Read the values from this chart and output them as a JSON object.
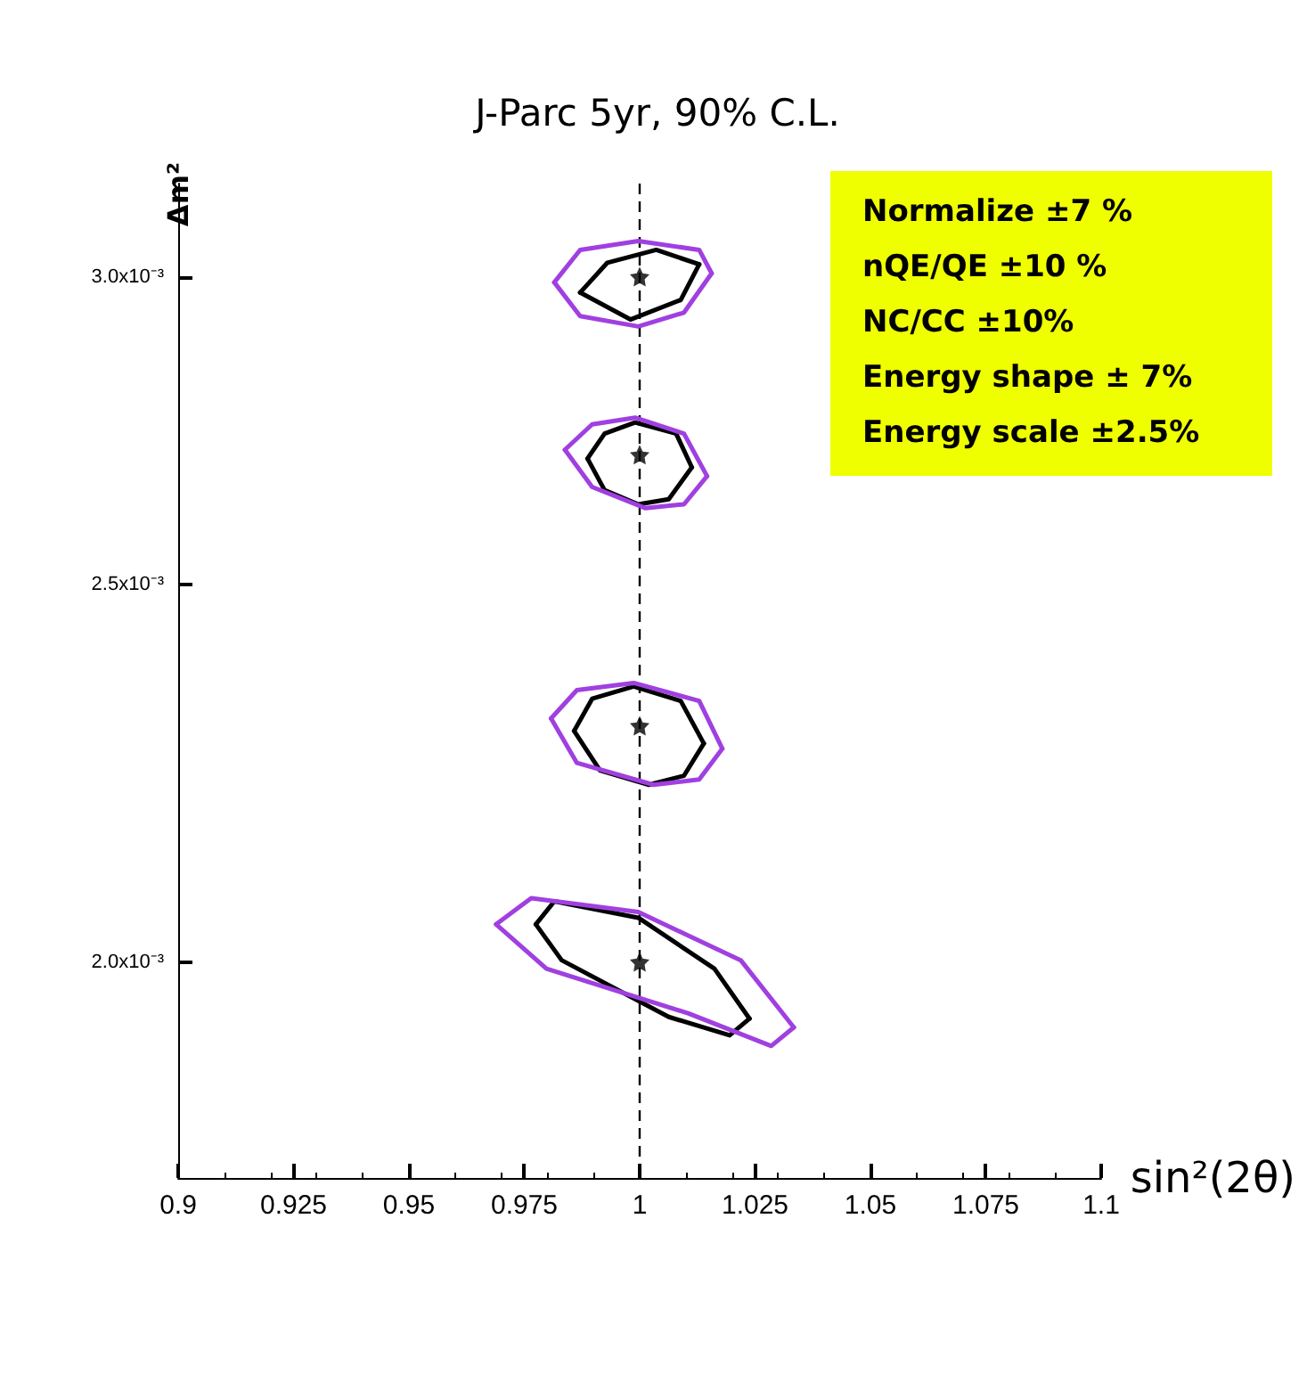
{
  "chart_data": {
    "type": "line",
    "title": "J-Parc 5yr, 90% C.L.",
    "xlabel": "sin²(2θ)",
    "ylabel": "Δm²",
    "log": "y",
    "grid": false,
    "marker": "none",
    "line_style": "solid",
    "xlim": [
      0.9,
      1.1
    ],
    "xticks": [
      0.9,
      0.925,
      0.95,
      0.975,
      1,
      1.025,
      1.05,
      1.075,
      1.1
    ],
    "ylim": [
      0.00176,
      0.00317
    ],
    "yticks": [
      {
        "value": 0.002,
        "label": "2.0x10⁻³"
      },
      {
        "value": 0.0025,
        "label": "2.5x10⁻³"
      },
      {
        "value": 0.003,
        "label": "3.0x10⁻³"
      }
    ],
    "ref_lines": [
      {
        "axis": "x",
        "value": 1,
        "color": "#000000",
        "line_style": "dashed"
      }
    ],
    "annotations": [
      "Normalize ±7 %",
      "nQE/QE ±10 %",
      "NC/CC ±10%",
      "Energy shape ± 7%",
      "Energy scale ±2.5%"
    ],
    "series": [
      {
        "color": "#000000",
        "x": [
          0.9871,
          0.993,
          1.0036,
          1.0129
        ],
        "values": [
          0.002972,
          0.003025,
          0.003048,
          0.003022
        ]
      },
      {
        "color": "#000000",
        "x": [
          0.9871,
          0.998,
          1.0089,
          1.0129
        ],
        "values": [
          0.002972,
          0.002925,
          0.002959,
          0.003022
        ]
      },
      {
        "color": "#a040e0",
        "x": [
          0.9815,
          0.9871,
          0.9997,
          1.0129,
          1.0156
        ],
        "values": [
          0.00299,
          0.003048,
          0.003064,
          0.003048,
          0.003006
        ]
      },
      {
        "color": "#a040e0",
        "x": [
          0.9815,
          0.9871,
          0.9997,
          1.0096,
          1.0156
        ],
        "values": [
          0.00299,
          0.002931,
          0.002913,
          0.002937,
          0.003006
        ]
      },
      {
        "color": "#000000",
        "x": [
          0.9887,
          0.9924,
          0.999,
          1.0079,
          1.0113
        ],
        "values": [
          0.002694,
          0.002734,
          0.002752,
          0.002734,
          0.00268
        ]
      },
      {
        "color": "#000000",
        "x": [
          0.9887,
          0.9924,
          0.9997,
          1.0063,
          1.0113
        ],
        "values": [
          0.002694,
          0.002644,
          0.002622,
          0.00263,
          0.00268
        ]
      },
      {
        "color": "#a040e0",
        "x": [
          0.9838,
          0.9897,
          0.999,
          1.0096,
          1.0146
        ],
        "values": [
          0.002708,
          0.002749,
          0.00276,
          0.002734,
          0.002666
        ]
      },
      {
        "color": "#a040e0",
        "x": [
          0.9838,
          0.9897,
          1.0013,
          1.0096,
          1.0146
        ],
        "values": [
          0.002708,
          0.002649,
          0.002616,
          0.002622,
          0.002666
        ]
      },
      {
        "color": "#000000",
        "x": [
          0.9858,
          0.9897,
          0.9987,
          1.0089,
          1.0139
        ],
        "values": [
          0.002293,
          0.002337,
          0.002354,
          0.002334,
          0.002276
        ]
      },
      {
        "color": "#000000",
        "x": [
          0.9858,
          0.9914,
          1.002,
          1.0096,
          1.0139
        ],
        "values": [
          0.002293,
          0.00224,
          0.002221,
          0.002233,
          0.002276
        ]
      },
      {
        "color": "#a040e0",
        "x": [
          0.9808,
          0.9864,
          0.9987,
          1.0129,
          1.0179
        ],
        "values": [
          0.00231,
          0.002349,
          0.002359,
          0.002334,
          0.002269
        ]
      },
      {
        "color": "#a040e0",
        "x": [
          0.9808,
          0.9864,
          1.003,
          1.0129,
          1.0179
        ],
        "values": [
          0.00231,
          0.00225,
          0.002221,
          0.002228,
          0.002269
        ]
      },
      {
        "color": "#000000",
        "x": [
          0.9775,
          0.9815,
          0.9997,
          1.0162,
          1.0238
        ],
        "values": [
          0.002045,
          0.002073,
          0.002053,
          0.001992,
          0.001934
        ]
      },
      {
        "color": "#000000",
        "x": [
          0.9775,
          0.9831,
          1.0063,
          1.0195,
          1.0238
        ],
        "values": [
          0.002045,
          0.002002,
          0.001936,
          0.001915,
          0.001934
        ]
      },
      {
        "color": "#a040e0",
        "x": [
          0.9689,
          0.9765,
          0.9997,
          1.0219,
          1.0334
        ],
        "values": [
          0.002045,
          0.002077,
          0.00206,
          0.002002,
          0.001924
        ]
      },
      {
        "color": "#a040e0",
        "x": [
          0.9689,
          0.9798,
          1.0106,
          1.0285,
          1.0334
        ],
        "values": [
          0.002045,
          0.001992,
          0.00194,
          0.001903,
          0.001924
        ]
      },
      {
        "type": "scatter",
        "marker": "star",
        "color": "#000000",
        "x": [
          1,
          1,
          1,
          1
        ],
        "values": [
          0.003,
          0.0027,
          0.0023,
          0.002
        ]
      }
    ]
  }
}
